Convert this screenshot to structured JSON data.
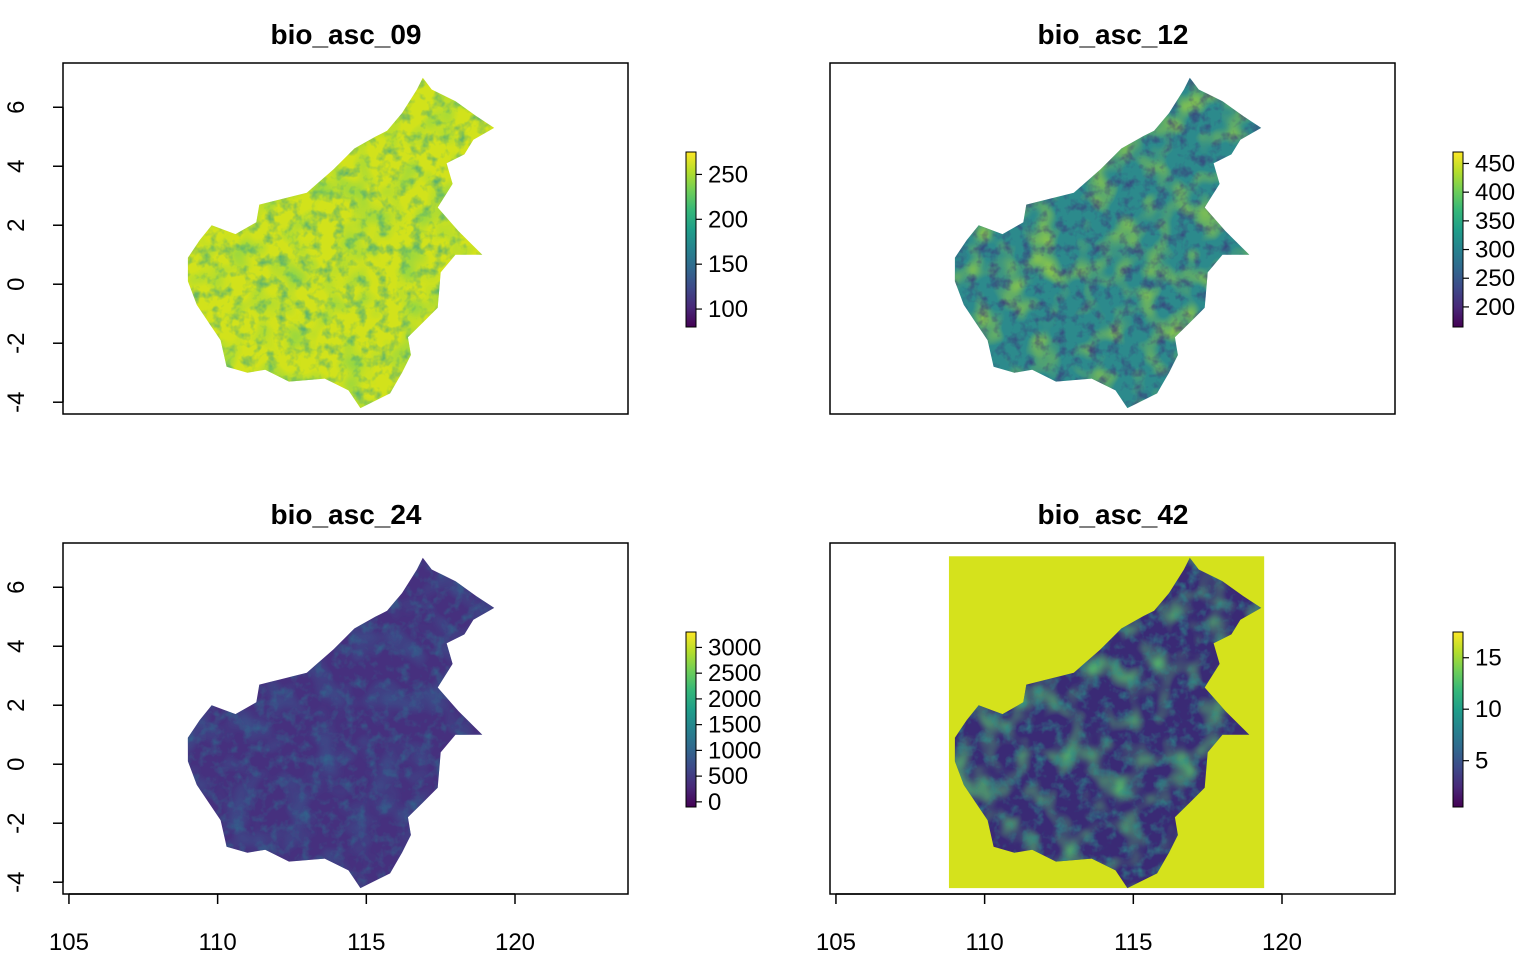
{
  "chart_data": [
    {
      "type": "heatmap",
      "title": "bio_asc_09",
      "xlim": [
        104.8,
        123.8
      ],
      "ylim": [
        -4.4,
        7.5
      ],
      "y_ticks": [
        6,
        4,
        2,
        0,
        -2,
        -4
      ],
      "y_tick_labels": [
        "6",
        "4",
        "2",
        "0",
        "-2",
        "-4"
      ],
      "x_ticks": [],
      "x_tick_labels": [],
      "legend": {
        "values": [
          250,
          200,
          150,
          100
        ],
        "labels": [
          "250",
          "200",
          "150",
          "100"
        ],
        "range": [
          80,
          275
        ]
      },
      "map_colors": {
        "base": "#d2e21b",
        "accent": "#2a9d8e",
        "accent2": "#88d44a"
      }
    },
    {
      "type": "heatmap",
      "title": "bio_asc_12",
      "xlim": [
        104.8,
        123.8
      ],
      "ylim": [
        -4.4,
        7.5
      ],
      "y_ticks": [],
      "y_tick_labels": [],
      "x_ticks": [],
      "x_tick_labels": [],
      "legend": {
        "values": [
          450,
          400,
          350,
          300,
          250,
          200
        ],
        "labels": [
          "450",
          "400",
          "350",
          "300",
          "250",
          "200"
        ],
        "range": [
          165,
          470
        ]
      },
      "map_colors": {
        "base": "#2c8a8c",
        "accent": "#3b2a78",
        "accent2": "#9bd23f"
      }
    },
    {
      "type": "heatmap",
      "title": "bio_asc_24",
      "xlim": [
        104.8,
        123.8
      ],
      "ylim": [
        -4.4,
        7.5
      ],
      "y_ticks": [
        6,
        4,
        2,
        0,
        -2,
        -4
      ],
      "y_tick_labels": [
        "6",
        "4",
        "2",
        "0",
        "-2",
        "-4"
      ],
      "x_ticks": [
        105,
        110,
        115,
        120
      ],
      "x_tick_labels": [
        "105",
        "110",
        "115",
        "120"
      ],
      "legend": {
        "values": [
          3000,
          2500,
          2000,
          1500,
          1000,
          500,
          0
        ],
        "labels": [
          "3000",
          "2500",
          "2000",
          "1500",
          "1000",
          "500",
          "0"
        ],
        "range": [
          -100,
          3300
        ]
      },
      "map_colors": {
        "base": "#46307e",
        "accent": "#2c6e8e",
        "accent2": "#3a528b"
      }
    },
    {
      "type": "heatmap",
      "title": "bio_asc_42",
      "xlim": [
        104.8,
        123.8
      ],
      "ylim": [
        -4.4,
        7.5
      ],
      "y_ticks": [],
      "y_tick_labels": [],
      "x_ticks": [
        105,
        110,
        115,
        120
      ],
      "x_tick_labels": [
        "105",
        "110",
        "115",
        "120"
      ],
      "legend": {
        "values": [
          15,
          10,
          5
        ],
        "labels": [
          "15",
          "10",
          "5"
        ],
        "range": [
          0.5,
          17.5
        ]
      },
      "background_rect": {
        "x0": 108.8,
        "x1": 119.4,
        "y0": -4.2,
        "y1": 7.05,
        "color": "#d5e21c"
      },
      "map_colors": {
        "base": "#3a2a75",
        "accent": "#2a8f8a",
        "accent2": "#55c16b"
      }
    }
  ],
  "viridis": [
    "#440154",
    "#482878",
    "#3e4989",
    "#31688e",
    "#26828e",
    "#1f9e89",
    "#35b779",
    "#6ece58",
    "#b5de2b",
    "#fde725"
  ],
  "outline": [
    [
      116.9,
      7.0
    ],
    [
      117.2,
      6.6
    ],
    [
      118.0,
      6.2
    ],
    [
      118.7,
      5.7
    ],
    [
      119.3,
      5.3
    ],
    [
      118.6,
      4.9
    ],
    [
      118.3,
      4.4
    ],
    [
      117.7,
      4.1
    ],
    [
      117.9,
      3.4
    ],
    [
      117.4,
      2.6
    ],
    [
      118.1,
      1.8
    ],
    [
      118.9,
      1.0
    ],
    [
      118.0,
      1.0
    ],
    [
      117.5,
      0.4
    ],
    [
      117.4,
      -0.8
    ],
    [
      116.9,
      -1.3
    ],
    [
      116.4,
      -1.8
    ],
    [
      116.5,
      -2.4
    ],
    [
      116.2,
      -3.0
    ],
    [
      115.8,
      -3.7
    ],
    [
      114.8,
      -4.2
    ],
    [
      114.4,
      -3.6
    ],
    [
      113.6,
      -3.2
    ],
    [
      112.4,
      -3.3
    ],
    [
      111.6,
      -2.9
    ],
    [
      111.0,
      -3.0
    ],
    [
      110.3,
      -2.8
    ],
    [
      110.1,
      -1.9
    ],
    [
      109.7,
      -1.3
    ],
    [
      109.3,
      -0.7
    ],
    [
      109.0,
      0.1
    ],
    [
      109.0,
      0.9
    ],
    [
      109.4,
      1.5
    ],
    [
      109.8,
      2.0
    ],
    [
      110.6,
      1.7
    ],
    [
      111.3,
      2.1
    ],
    [
      111.4,
      2.7
    ],
    [
      113.0,
      3.1
    ],
    [
      113.9,
      3.9
    ],
    [
      114.6,
      4.6
    ],
    [
      115.3,
      5.0
    ],
    [
      115.7,
      5.2
    ],
    [
      116.2,
      5.8
    ],
    [
      116.7,
      6.6
    ]
  ]
}
